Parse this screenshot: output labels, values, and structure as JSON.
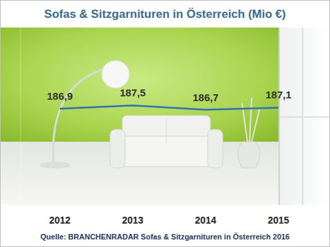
{
  "chart_data": {
    "type": "line",
    "title": "Sofas & Sitzgarnituren in Österreich (Mio €)",
    "source": "Quelle: BRANCHENRADAR  Sofas & Sitzgarnituren in Österreich 2016",
    "categories": [
      "2012",
      "2013",
      "2014",
      "2015"
    ],
    "values": [
      186.9,
      187.5,
      186.7,
      187.1
    ],
    "value_labels": [
      "186,9",
      "187,5",
      "186,7",
      "187,1"
    ],
    "color": "#2f6fb5",
    "ylim": [
      170,
      202
    ],
    "yticks": [],
    "grid": false,
    "data_labels": true,
    "tick_labels": "x"
  }
}
